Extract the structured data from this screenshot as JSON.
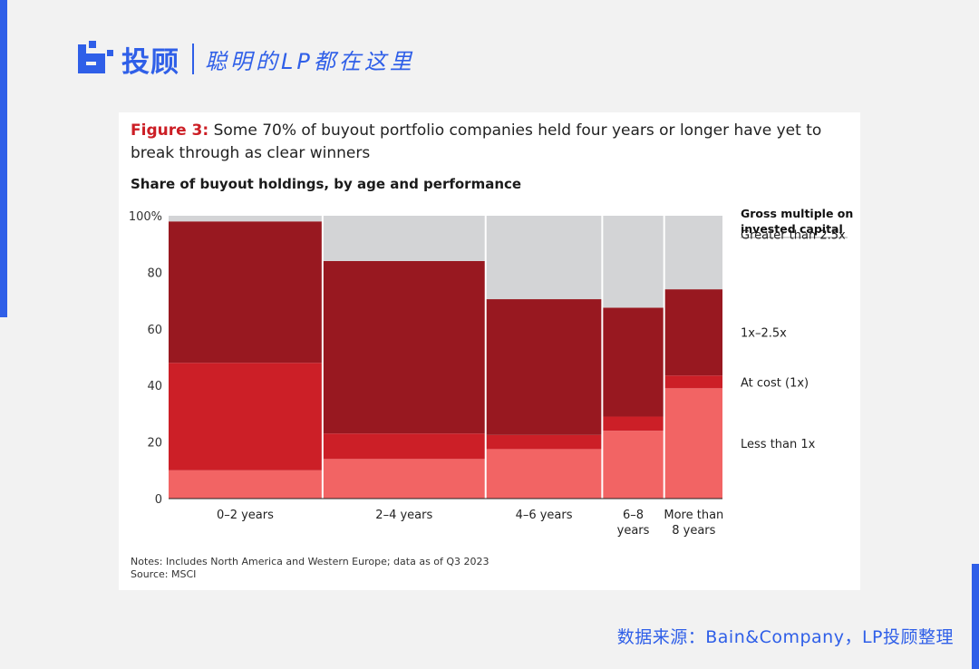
{
  "brand": {
    "name": "投顾",
    "slogan": "聪明的LP都在这里",
    "accent_color": "#2f5fe8"
  },
  "figure": {
    "label": "Figure 3:",
    "title": "Some 70% of buyout portfolio companies held four years or longer have yet to break through as clear winners",
    "subtitle": "Share of buyout holdings, by age and performance",
    "notes": "Notes: Includes North America and Western Europe; data as of Q3 2023",
    "source": "Source: MSCI"
  },
  "chart_data": {
    "type": "bar",
    "variant": "marimekko",
    "categories": [
      [
        "0–2 years"
      ],
      [
        "2–4 years"
      ],
      [
        "4–6 years"
      ],
      [
        "6–8",
        "years"
      ],
      [
        "More than",
        "8 years"
      ]
    ],
    "widths": [
      28,
      29.5,
      21,
      11,
      10.5
    ],
    "ylim": [
      0,
      100
    ],
    "yticks": [
      0,
      20,
      40,
      60,
      80,
      100
    ],
    "ytick_labels": [
      "0",
      "20",
      "40",
      "60",
      "80",
      "100%"
    ],
    "legend_title": [
      "Gross multiple on",
      "invested capital"
    ],
    "legend_placement": "right",
    "series": [
      {
        "name": "Less than 1x",
        "color": "#f26464",
        "values": [
          10,
          14,
          17.5,
          24,
          39
        ]
      },
      {
        "name": "At cost (1x)",
        "color": "#cc1f27",
        "values": [
          38,
          9,
          5,
          5,
          4.5
        ]
      },
      {
        "name": "1x–2.5x",
        "color": "#981820",
        "values": [
          50,
          61,
          48,
          38.5,
          30.5
        ]
      },
      {
        "name": "Greater than 2.5x",
        "color": "#d3d4d6",
        "values": [
          2,
          16,
          29.5,
          32.5,
          26
        ]
      }
    ]
  },
  "footer": {
    "source_text": "数据来源：Bain&Company，LP投顾整理"
  }
}
